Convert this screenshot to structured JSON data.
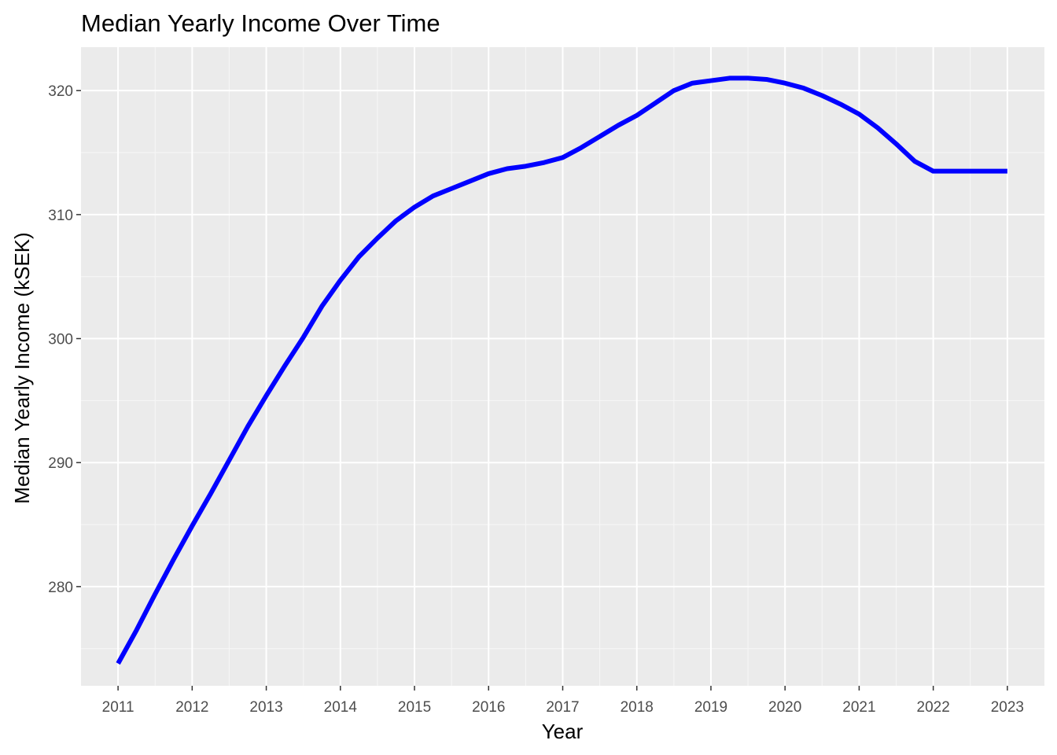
{
  "chart_data": {
    "type": "line",
    "title": "Median Yearly Income Over Time",
    "xlabel": "Year",
    "ylabel": "Median Yearly Income (kSEK)",
    "x_ticks": [
      "2011",
      "2012",
      "2013",
      "2014",
      "2015",
      "2016",
      "2017",
      "2018",
      "2019",
      "2020",
      "2021",
      "2022",
      "2023"
    ],
    "y_ticks": [
      "280",
      "290",
      "300",
      "310",
      "320"
    ],
    "xlim": [
      2010.5,
      2023.5
    ],
    "ylim": [
      272.0,
      323.5
    ],
    "grid": true,
    "legend": "none",
    "series": [
      {
        "color": "#0000ff",
        "x": [
          2011.0,
          2011.25,
          2011.5,
          2011.75,
          2012.0,
          2012.25,
          2012.5,
          2012.75,
          2013.0,
          2013.25,
          2013.5,
          2013.75,
          2014.0,
          2014.25,
          2014.5,
          2014.75,
          2015.0,
          2015.25,
          2015.5,
          2015.75,
          2016.0,
          2016.25,
          2016.5,
          2016.75,
          2017.0,
          2017.25,
          2017.5,
          2017.75,
          2018.0,
          2018.25,
          2018.5,
          2018.75,
          2019.0,
          2019.25,
          2019.5,
          2019.75,
          2020.0,
          2020.25,
          2020.5,
          2020.75,
          2021.0,
          2021.25,
          2021.5,
          2021.75,
          2022.0,
          2022.25,
          2022.5,
          2022.75,
          2023.0
        ],
        "y": [
          273.8,
          276.5,
          279.4,
          282.2,
          284.9,
          287.5,
          290.2,
          292.9,
          295.4,
          297.8,
          300.1,
          302.6,
          304.7,
          306.6,
          308.1,
          309.5,
          310.6,
          311.5,
          312.1,
          312.7,
          313.3,
          313.7,
          313.9,
          314.2,
          314.6,
          315.4,
          316.3,
          317.2,
          318.0,
          319.0,
          320.0,
          320.6,
          320.8,
          321.0,
          321.0,
          320.9,
          320.6,
          320.2,
          319.6,
          318.9,
          318.1,
          317.0,
          315.7,
          314.3,
          313.5,
          313.5,
          313.5,
          313.5,
          313.5
        ]
      }
    ]
  }
}
